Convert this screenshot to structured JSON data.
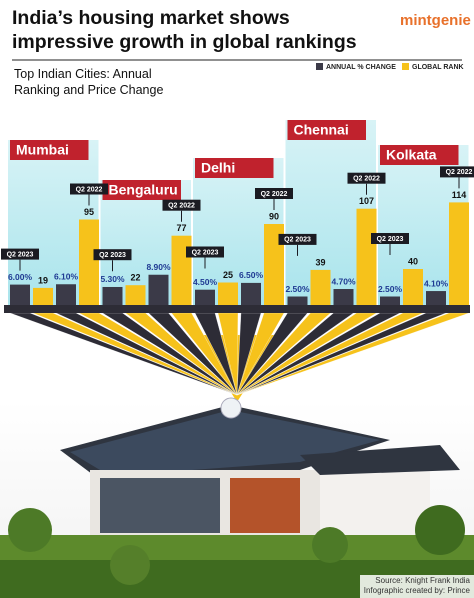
{
  "brand": "mintgenie",
  "source": "Source: Knight Frank India",
  "credit": "Infographic created by: Prince",
  "chart_data": {
    "type": "bar",
    "title": "India’s housing market shows impressive growth in global rankings",
    "subtitle": "Top Indian Cities: Annual Ranking and Price Change",
    "categories": [
      "Mumbai",
      "Bengaluru",
      "Delhi",
      "Chennai",
      "Kolkata"
    ],
    "periods": [
      "Q2 2023",
      "Q2 2022"
    ],
    "series": [
      {
        "name": "ANNUAL % CHANGE",
        "color": "#3b3a48",
        "values": [
          [
            6.0,
            6.1
          ],
          [
            5.3,
            8.9
          ],
          [
            4.5,
            6.5
          ],
          [
            2.5,
            4.7
          ],
          [
            2.5,
            4.1
          ]
        ],
        "value_labels": [
          [
            "6.00%",
            "6.10%"
          ],
          [
            "5.30%",
            "8.90%"
          ],
          [
            "4.50%",
            "6.50%"
          ],
          [
            "2.50%",
            "4.70%"
          ],
          [
            "2.50%",
            "4.10%"
          ]
        ]
      },
      {
        "name": "GLOBAL RANK",
        "color": "#f6c21b",
        "values": [
          [
            19,
            95
          ],
          [
            22,
            77
          ],
          [
            25,
            90
          ],
          [
            39,
            107
          ],
          [
            40,
            114
          ]
        ]
      }
    ]
  }
}
